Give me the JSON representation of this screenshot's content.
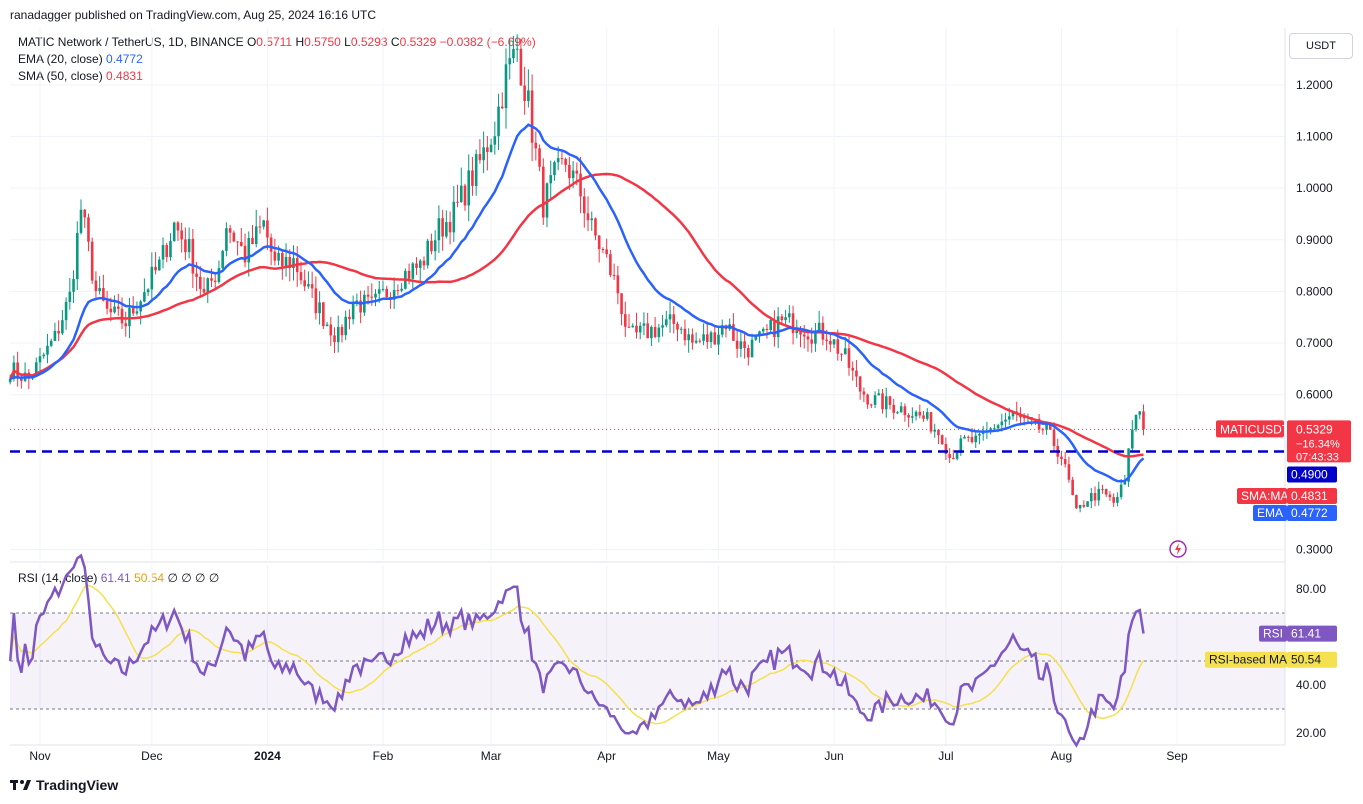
{
  "header": {
    "published": "ranadagger published on TradingView.com, Aug 25, 2024 16:16 UTC"
  },
  "legend": {
    "symbol": "MATIC Network / TetherUS, 1D, BINANCE",
    "o_label": "O",
    "o": "0.5711",
    "h_label": "H",
    "h": "0.5750",
    "l_label": "L",
    "l": "0.5293",
    "c_label": "C",
    "c": "0.5329",
    "change": "−0.0382 (−6.69%)",
    "ema_label": "EMA (20, close)",
    "ema_value": "0.4772",
    "sma_label": "SMA (50, close)",
    "sma_value": "0.4831",
    "rsi_label": "RSI (14, close)",
    "rsi_value": "61.41",
    "rsi_ma_value": "50.54",
    "rsi_extra": "∅ ∅ ∅ ∅"
  },
  "currency_button": "USDT",
  "footer": {
    "brand": "TradingView"
  },
  "colors": {
    "up": "#089981",
    "down": "#f23645",
    "ema": "#2962ff",
    "sma": "#f23645",
    "rsi": "#7e57c2",
    "rsi_ma": "#f5e050",
    "support": "#0000c8"
  },
  "price_labels": {
    "symbol_tag": "MATICUSDT",
    "last": "0.5329",
    "change_pct": "−16.34%",
    "countdown": "07:43:33",
    "support": "0.4900",
    "sma_tag": "SMA:MA",
    "sma": "0.4831",
    "ema_tag": "EMA",
    "ema": "0.4772"
  },
  "rsi_labels": {
    "rsi_tag": "RSI",
    "rsi": "61.41",
    "ma_tag": "RSI-based MA",
    "ma": "50.54"
  },
  "chart_data": {
    "type": "candlestick",
    "title": "MATIC Network / TetherUS, 1D, BINANCE",
    "y_ticks": [
      "1.2000",
      "1.1000",
      "1.0000",
      "0.9000",
      "0.8000",
      "0.7000",
      "0.6000",
      "0.3000"
    ],
    "y_tick_values": [
      1.2,
      1.1,
      1.0,
      0.9,
      0.8,
      0.7,
      0.6,
      0.3
    ],
    "ylim": [
      0.28,
      1.31
    ],
    "x_ticks": [
      "Nov",
      "Dec",
      "2024",
      "Feb",
      "Mar",
      "Apr",
      "May",
      "Jun",
      "Jul",
      "Aug",
      "Sep"
    ],
    "x_tick_days": [
      0,
      30,
      61,
      92,
      121,
      152,
      182,
      213,
      243,
      274,
      305
    ],
    "support_level": 0.49,
    "anchors": [
      [
        -8,
        0.65
      ],
      [
        -3,
        0.63
      ],
      [
        4,
        0.71
      ],
      [
        8,
        0.79
      ],
      [
        11,
        0.96
      ],
      [
        13,
        0.88
      ],
      [
        15,
        0.8
      ],
      [
        18,
        0.76
      ],
      [
        23,
        0.74
      ],
      [
        27,
        0.79
      ],
      [
        32,
        0.85
      ],
      [
        36,
        0.93
      ],
      [
        40,
        0.88
      ],
      [
        44,
        0.79
      ],
      [
        48,
        0.85
      ],
      [
        50,
        0.93
      ],
      [
        55,
        0.87
      ],
      [
        60,
        0.93
      ],
      [
        63,
        0.85
      ],
      [
        68,
        0.86
      ],
      [
        72,
        0.8
      ],
      [
        77,
        0.74
      ],
      [
        80,
        0.71
      ],
      [
        84,
        0.78
      ],
      [
        89,
        0.77
      ],
      [
        93,
        0.8
      ],
      [
        97,
        0.83
      ],
      [
        102,
        0.85
      ],
      [
        107,
        0.92
      ],
      [
        111,
        0.95
      ],
      [
        115,
        1.01
      ],
      [
        118,
        1.05
      ],
      [
        122,
        1.12
      ],
      [
        125,
        1.22
      ],
      [
        128,
        1.27
      ],
      [
        131,
        1.16
      ],
      [
        135,
        0.97
      ],
      [
        138,
        1.02
      ],
      [
        141,
        1.05
      ],
      [
        145,
        0.99
      ],
      [
        148,
        0.92
      ],
      [
        152,
        0.86
      ],
      [
        155,
        0.8
      ],
      [
        158,
        0.71
      ],
      [
        162,
        0.72
      ],
      [
        166,
        0.73
      ],
      [
        171,
        0.74
      ],
      [
        175,
        0.7
      ],
      [
        180,
        0.71
      ],
      [
        184,
        0.74
      ],
      [
        187,
        0.7
      ],
      [
        190,
        0.69
      ],
      [
        194,
        0.71
      ],
      [
        198,
        0.74
      ],
      [
        203,
        0.74
      ],
      [
        207,
        0.72
      ],
      [
        211,
        0.72
      ],
      [
        216,
        0.67
      ],
      [
        220,
        0.61
      ],
      [
        223,
        0.59
      ],
      [
        228,
        0.58
      ],
      [
        233,
        0.57
      ],
      [
        238,
        0.55
      ],
      [
        242,
        0.52
      ],
      [
        244,
        0.48
      ],
      [
        248,
        0.51
      ],
      [
        252,
        0.51
      ],
      [
        256,
        0.54
      ],
      [
        261,
        0.56
      ],
      [
        266,
        0.54
      ],
      [
        270,
        0.53
      ],
      [
        274,
        0.48
      ],
      [
        276,
        0.43
      ],
      [
        278,
        0.37
      ],
      [
        281,
        0.4
      ],
      [
        285,
        0.41
      ],
      [
        288,
        0.39
      ],
      [
        291,
        0.43
      ],
      [
        293,
        0.54
      ],
      [
        295,
        0.57
      ],
      [
        296,
        0.53
      ]
    ],
    "ema20_end": 0.4772,
    "sma50_end": 0.4831,
    "last_close": 0.5329,
    "rsi": {
      "ylim": [
        15,
        90
      ],
      "y_ticks": [
        "80.00",
        "40.00",
        "20.00"
      ],
      "y_tick_values": [
        80,
        40,
        20
      ],
      "overbought": 70,
      "oversold": 30,
      "midline": 50,
      "last": 61.41,
      "ma_last": 50.54
    }
  }
}
